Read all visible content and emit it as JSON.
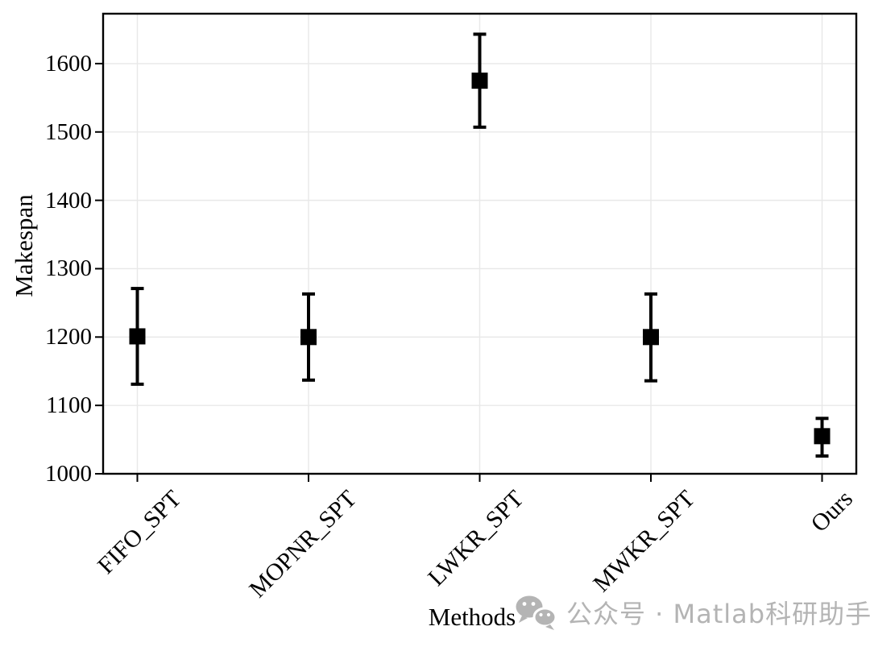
{
  "figure": {
    "background": "#ffffff",
    "axis_color": "#000000",
    "grid_color": "#e8e8e8",
    "marker_color": "#000000"
  },
  "watermark": {
    "icon": "wechat-icon",
    "color": "#b4b4b4",
    "text": "公众号 · Matlab科研助手"
  },
  "chart_data": {
    "type": "scatter",
    "subtype": "mean-with-error-bars",
    "title": "",
    "xlabel": "Methods",
    "ylabel": "Makespan",
    "categories": [
      "FIFO_SPT",
      "MOPNR_SPT",
      "LWKR_SPT",
      "MWKR_SPT",
      "Ours"
    ],
    "series": [
      {
        "name": "Makespan",
        "means": [
          1201,
          1200,
          1575,
          1200,
          1055
        ],
        "err_low": [
          1131,
          1137,
          1507,
          1136,
          1026
        ],
        "err_high": [
          1271,
          1263,
          1643,
          1263,
          1081
        ]
      }
    ],
    "y_ticks": [
      1000,
      1100,
      1200,
      1300,
      1400,
      1500,
      1600
    ],
    "ylim": [
      1000,
      1673
    ],
    "grid": true,
    "legend_position": "none",
    "marker": "filled-square"
  }
}
